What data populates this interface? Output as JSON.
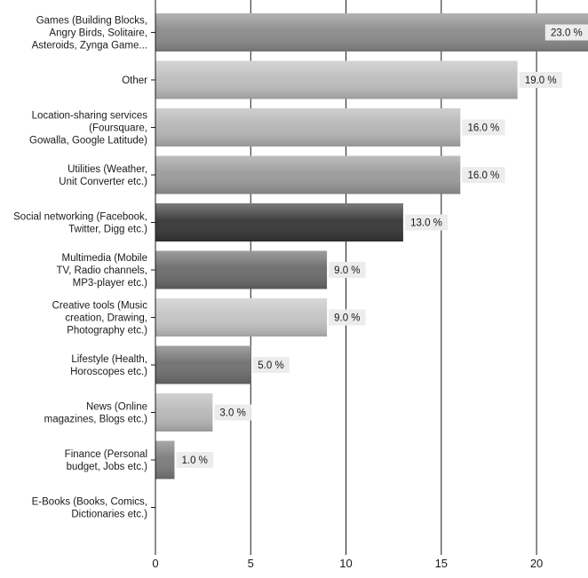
{
  "chart_data": {
    "type": "bar",
    "orientation": "horizontal",
    "categories": [
      "Games (Building Blocks, Angry Birds, Solitaire, Asteroids, Zynga Game...",
      "Other",
      "Location-sharing services (Foursquare, Gowalla, Google Latitude)",
      "Utilities (Weather, Unit Converter etc.)",
      "Social networking (Facebook, Twitter, Digg etc.)",
      "Multimedia (Mobile TV, Radio channels, MP3-player etc.)",
      "Creative tools (Music creation, Drawing, Photography etc.)",
      "Lifestyle (Health, Horoscopes etc.)",
      "News (Online magazines, Blogs etc.)",
      "Finance (Personal budget, Jobs etc.)",
      "E-Books (Books, Comics, Dictionaries etc.)"
    ],
    "category_lines": [
      [
        "Games (Building Blocks,",
        "Angry Birds, Solitaire,",
        "Asteroids, Zynga Game..."
      ],
      [
        "Other"
      ],
      [
        "Location-sharing services",
        "(Foursquare,",
        "Gowalla, Google Latitude)"
      ],
      [
        "Utilities (Weather,",
        "Unit Converter etc.)"
      ],
      [
        "Social networking (Facebook,",
        "Twitter, Digg etc.)"
      ],
      [
        "Multimedia (Mobile",
        "TV, Radio channels,",
        "MP3-player etc.)"
      ],
      [
        "Creative tools (Music",
        "creation, Drawing,",
        "Photography etc.)"
      ],
      [
        "Lifestyle (Health,",
        "Horoscopes etc.)"
      ],
      [
        "News (Online",
        "magazines, Blogs etc.)"
      ],
      [
        "Finance (Personal",
        "budget, Jobs etc.)"
      ],
      [
        "E-Books (Books, Comics,",
        "Dictionaries etc.)"
      ]
    ],
    "values": [
      23.0,
      19.0,
      16.0,
      16.0,
      13.0,
      9.0,
      9.0,
      5.0,
      3.0,
      1.0,
      0
    ],
    "value_labels": [
      "23.0 %",
      "19.0 %",
      "16.0 %",
      "16.0 %",
      "13.0 %",
      "9.0 %",
      "9.0 %",
      "5.0 %",
      "3.0 %",
      "1.0 %",
      ""
    ],
    "bar_colors": [
      "#8a8a8a",
      "#bdbdbd",
      "#b5b5b5",
      "#9a9a9a",
      "#353535",
      "#6a6a6a",
      "#c4c4c4",
      "#6e6e6e",
      "#b8b8b8",
      "#7a7a7a",
      "#9a9a9a"
    ],
    "x_ticks": [
      "0",
      "5",
      "10",
      "15",
      "20"
    ],
    "xlim": [
      0,
      22.7
    ],
    "grid": true,
    "title": "",
    "xlabel": "",
    "ylabel": ""
  }
}
